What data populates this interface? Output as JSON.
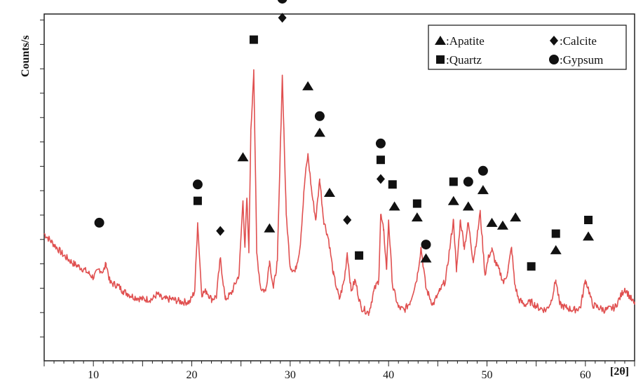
{
  "chart_data": {
    "type": "line",
    "title": "",
    "ylabel": "Counts/s",
    "xlabel": "",
    "x_unit": "[2θ]",
    "xlim": [
      5,
      65
    ],
    "ylim": [
      0,
      100
    ],
    "x_ticks": [
      10,
      20,
      30,
      40,
      50,
      60
    ],
    "y_ticks_labeled": false,
    "grid": false,
    "line_color": "#e05050",
    "legend_placement": "top-right",
    "legend": [
      {
        "symbol": "triangle",
        "label": ":Apatite"
      },
      {
        "symbol": "diamond",
        "label": ":Calcite"
      },
      {
        "symbol": "square",
        "label": ":Quartz"
      },
      {
        "symbol": "circle",
        "label": ":Gypsum"
      }
    ],
    "series": [
      {
        "x": [
          5.0,
          6.0,
          7.0,
          8.0,
          9.0,
          10.0,
          10.6,
          11.0,
          11.3,
          11.7,
          12.5,
          13.0,
          13.5,
          14.0,
          15.0,
          16.0,
          16.5,
          17.0,
          18.0,
          19.0,
          19.8,
          20.3,
          20.6,
          21.0,
          21.5,
          22.0,
          22.5,
          22.9,
          23.4,
          24.0,
          24.8,
          25.2,
          25.4,
          25.6,
          25.8,
          26.0,
          26.3,
          26.6,
          27.0,
          27.5,
          27.9,
          28.3,
          28.7,
          29.2,
          29.6,
          30.0,
          30.5,
          31.0,
          31.5,
          31.8,
          32.2,
          32.6,
          33.0,
          33.4,
          33.9,
          34.4,
          35.0,
          35.5,
          35.8,
          36.2,
          36.6,
          37.2,
          38.0,
          38.5,
          39.0,
          39.2,
          39.5,
          39.8,
          40.0,
          40.4,
          41.0,
          41.6,
          42.2,
          42.9,
          43.3,
          43.8,
          44.5,
          45.2,
          45.8,
          46.3,
          46.6,
          46.9,
          47.3,
          47.7,
          48.1,
          48.6,
          49.0,
          49.3,
          49.8,
          50.2,
          50.5,
          50.9,
          51.3,
          51.7,
          52.1,
          52.5,
          52.8,
          53.2,
          53.8,
          54.5,
          55.2,
          56.0,
          56.5,
          57.0,
          57.4,
          58.0,
          58.8,
          59.5,
          60.0,
          60.3,
          60.7,
          61.3,
          62.0,
          63.0,
          64.0,
          65.0
        ],
        "values": [
          35,
          31,
          27,
          24,
          22,
          19,
          22,
          21,
          24,
          17,
          16,
          14,
          13,
          12,
          11,
          11,
          13,
          11,
          11,
          10,
          10,
          14,
          39,
          13,
          14,
          11,
          12,
          26,
          11,
          13,
          20,
          47,
          30,
          48,
          28,
          72,
          95,
          28,
          15,
          14,
          25,
          15,
          25,
          93,
          42,
          23,
          21,
          30,
          55,
          64,
          50,
          40,
          55,
          40,
          33,
          20,
          11,
          18,
          28,
          14,
          18,
          8,
          6,
          14,
          18,
          42,
          36,
          22,
          40,
          16,
          8,
          7,
          10,
          19,
          30,
          15,
          9,
          14,
          18,
          32,
          40,
          21,
          40,
          30,
          39,
          25,
          34,
          43,
          20,
          27,
          29,
          24,
          21,
          17,
          21,
          30,
          17,
          11,
          9,
          10,
          8,
          7,
          10,
          18,
          9,
          8,
          7,
          8,
          18,
          15,
          9,
          8,
          7,
          8,
          15,
          9
        ]
      }
    ],
    "annotations": [
      {
        "x": 10.6,
        "y": 39,
        "symbol": "circle"
      },
      {
        "x": 20.6,
        "y": 53,
        "symbol": "circle"
      },
      {
        "x": 20.6,
        "y": 47,
        "symbol": "square"
      },
      {
        "x": 22.9,
        "y": 36,
        "symbol": "diamond"
      },
      {
        "x": 25.2,
        "y": 63,
        "symbol": "triangle"
      },
      {
        "x": 26.3,
        "y": 106,
        "symbol": "square"
      },
      {
        "x": 27.9,
        "y": 37,
        "symbol": "triangle"
      },
      {
        "x": 29.2,
        "y": 114,
        "symbol": "diamond"
      },
      {
        "x": 29.2,
        "y": 121,
        "symbol": "circle"
      },
      {
        "x": 31.8,
        "y": 89,
        "symbol": "triangle"
      },
      {
        "x": 33.0,
        "y": 78,
        "symbol": "circle"
      },
      {
        "x": 33.0,
        "y": 72,
        "symbol": "triangle"
      },
      {
        "x": 34.0,
        "y": 50,
        "symbol": "triangle"
      },
      {
        "x": 35.8,
        "y": 40,
        "symbol": "diamond"
      },
      {
        "x": 37.0,
        "y": 27,
        "symbol": "square"
      },
      {
        "x": 39.2,
        "y": 68,
        "symbol": "circle"
      },
      {
        "x": 39.2,
        "y": 62,
        "symbol": "square"
      },
      {
        "x": 39.2,
        "y": 55,
        "symbol": "diamond"
      },
      {
        "x": 40.4,
        "y": 53,
        "symbol": "square"
      },
      {
        "x": 40.6,
        "y": 45,
        "symbol": "triangle"
      },
      {
        "x": 42.9,
        "y": 46,
        "symbol": "square"
      },
      {
        "x": 42.9,
        "y": 41,
        "symbol": "triangle"
      },
      {
        "x": 43.8,
        "y": 31,
        "symbol": "circle"
      },
      {
        "x": 43.8,
        "y": 26,
        "symbol": "triangle"
      },
      {
        "x": 46.6,
        "y": 54,
        "symbol": "square"
      },
      {
        "x": 46.6,
        "y": 47,
        "symbol": "triangle"
      },
      {
        "x": 48.1,
        "y": 54,
        "symbol": "circle"
      },
      {
        "x": 48.1,
        "y": 45,
        "symbol": "triangle"
      },
      {
        "x": 49.6,
        "y": 58,
        "symbol": "circle"
      },
      {
        "x": 49.6,
        "y": 51,
        "symbol": "triangle"
      },
      {
        "x": 50.5,
        "y": 39,
        "symbol": "triangle"
      },
      {
        "x": 51.6,
        "y": 38,
        "symbol": "triangle"
      },
      {
        "x": 52.9,
        "y": 41,
        "symbol": "triangle"
      },
      {
        "x": 54.5,
        "y": 23,
        "symbol": "square"
      },
      {
        "x": 57.0,
        "y": 35,
        "symbol": "square"
      },
      {
        "x": 57.0,
        "y": 29,
        "symbol": "triangle"
      },
      {
        "x": 60.3,
        "y": 40,
        "symbol": "square"
      },
      {
        "x": 60.3,
        "y": 34,
        "symbol": "triangle"
      }
    ]
  }
}
